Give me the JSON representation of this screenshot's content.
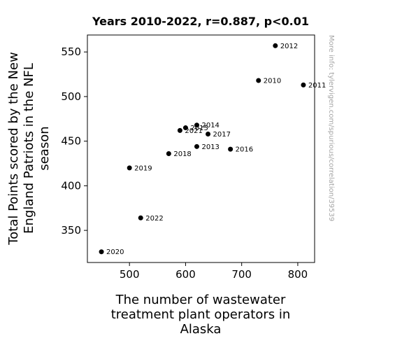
{
  "chart_data": {
    "type": "scatter",
    "title": "Years 2010-2022, r=0.887, p<0.01",
    "xlabel_lines": [
      "The number of wastewater",
      "treatment plant operators in",
      "Alaska"
    ],
    "ylabel_lines": [
      "Total Points scored by the New",
      "England Patriots in the NFL",
      "season"
    ],
    "xlim": [
      425,
      830
    ],
    "ylim": [
      314,
      569
    ],
    "x_ticks": [
      500,
      600,
      700,
      800
    ],
    "y_ticks": [
      350,
      400,
      450,
      500,
      550
    ],
    "grid": false,
    "marker_color": "#000000",
    "points": [
      {
        "label": "2010",
        "x": 730,
        "y": 518
      },
      {
        "label": "2011",
        "x": 810,
        "y": 513
      },
      {
        "label": "2012",
        "x": 760,
        "y": 557
      },
      {
        "label": "2013",
        "x": 620,
        "y": 444
      },
      {
        "label": "2014",
        "x": 620,
        "y": 468
      },
      {
        "label": "2015",
        "x": 600,
        "y": 465
      },
      {
        "label": "2016",
        "x": 680,
        "y": 441
      },
      {
        "label": "2017",
        "x": 640,
        "y": 458
      },
      {
        "label": "2018",
        "x": 570,
        "y": 436
      },
      {
        "label": "2019",
        "x": 500,
        "y": 420
      },
      {
        "label": "2020",
        "x": 450,
        "y": 326
      },
      {
        "label": "2021",
        "x": 590,
        "y": 462
      },
      {
        "label": "2022",
        "x": 520,
        "y": 364
      }
    ],
    "watermark": "More info: tylervigen.com/spurious/correlation/39539",
    "watermark_color": "#a6a6a6"
  }
}
